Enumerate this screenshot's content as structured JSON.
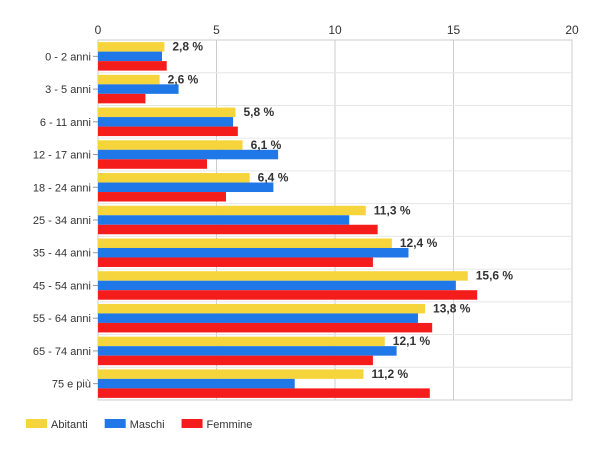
{
  "chart_data": {
    "type": "bar",
    "orientation": "horizontal",
    "categories": [
      "0 - 2 anni",
      "3 - 5 anni",
      "6 - 11 anni",
      "12 - 17 anni",
      "18 - 24 anni",
      "25 - 34 anni",
      "35 - 44 anni",
      "45 - 54 anni",
      "55 - 64 anni",
      "65 - 74 anni",
      "75 e più"
    ],
    "series": [
      {
        "name": "Abitanti",
        "color": "#f6d53c",
        "values": [
          2.8,
          2.6,
          5.8,
          6.1,
          6.4,
          11.3,
          12.4,
          15.6,
          13.8,
          12.1,
          11.2
        ],
        "labels": [
          "2,8 %",
          "2,6 %",
          "5,8 %",
          "6,1 %",
          "6,4 %",
          "11,3 %",
          "12,4 %",
          "15,6 %",
          "13,8 %",
          "12,1 %",
          "11,2 %"
        ]
      },
      {
        "name": "Maschi",
        "color": "#1f77e8",
        "values": [
          2.7,
          3.4,
          5.7,
          7.6,
          7.4,
          10.6,
          13.1,
          15.1,
          13.5,
          12.6,
          8.3
        ]
      },
      {
        "name": "Femmine",
        "color": "#f51c1c",
        "values": [
          2.9,
          2.0,
          5.9,
          4.6,
          5.4,
          11.8,
          11.6,
          16.0,
          14.1,
          11.6,
          14.0
        ]
      }
    ],
    "xlim": [
      0,
      20
    ],
    "xticks": [
      "0",
      "5",
      "10",
      "15",
      "20"
    ],
    "grid": true,
    "legend_position": "bottom-left",
    "title": "",
    "xlabel": "",
    "ylabel": ""
  }
}
